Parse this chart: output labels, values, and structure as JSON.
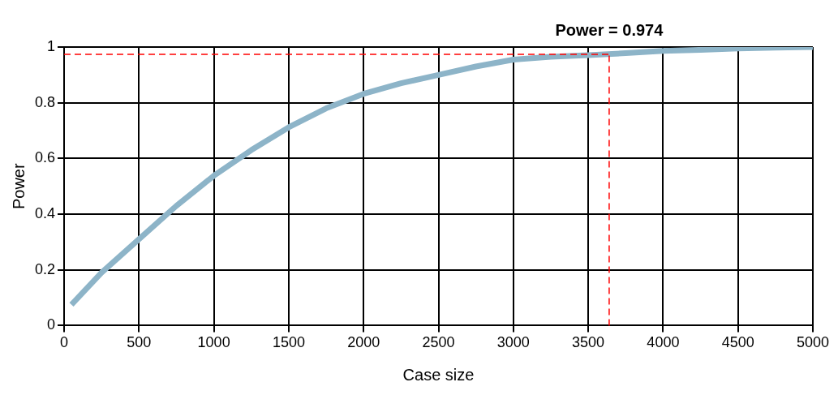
{
  "chart_data": {
    "type": "line",
    "xlabel": "Case size",
    "ylabel": "Power",
    "x": [
      49,
      250,
      500,
      750,
      1000,
      1250,
      1500,
      1750,
      2000,
      2250,
      2500,
      2750,
      3000,
      3250,
      3500,
      3750,
      4000,
      4250,
      4500,
      4750,
      5000
    ],
    "series": [
      {
        "color": "#8db4c8",
        "values": [
          0.075,
          0.19,
          0.31,
          0.43,
          0.538,
          0.63,
          0.712,
          0.78,
          0.832,
          0.87,
          0.9,
          0.93,
          0.955,
          0.965,
          0.971,
          0.978,
          0.986,
          0.99,
          0.995,
          0.998,
          1.0
        ]
      }
    ],
    "ref_lines": [
      {
        "axis": "y",
        "value": 0.974,
        "label": "Power = 0.974",
        "color": "#ff0000",
        "line_style": "dashed"
      },
      {
        "axis": "x",
        "value": 3640,
        "color": "#ff0000",
        "line_style": "dashed"
      }
    ],
    "xlim": [
      0,
      5000
    ],
    "xticks": [
      0,
      500,
      1000,
      1500,
      2000,
      2500,
      3000,
      3500,
      4000,
      4500,
      5000
    ],
    "ylim": [
      0,
      1
    ],
    "yticks": [
      0,
      0.2,
      0.4,
      0.6,
      0.8,
      1
    ],
    "grid": true,
    "legend": false,
    "marker": "none",
    "line_style": "solid"
  }
}
